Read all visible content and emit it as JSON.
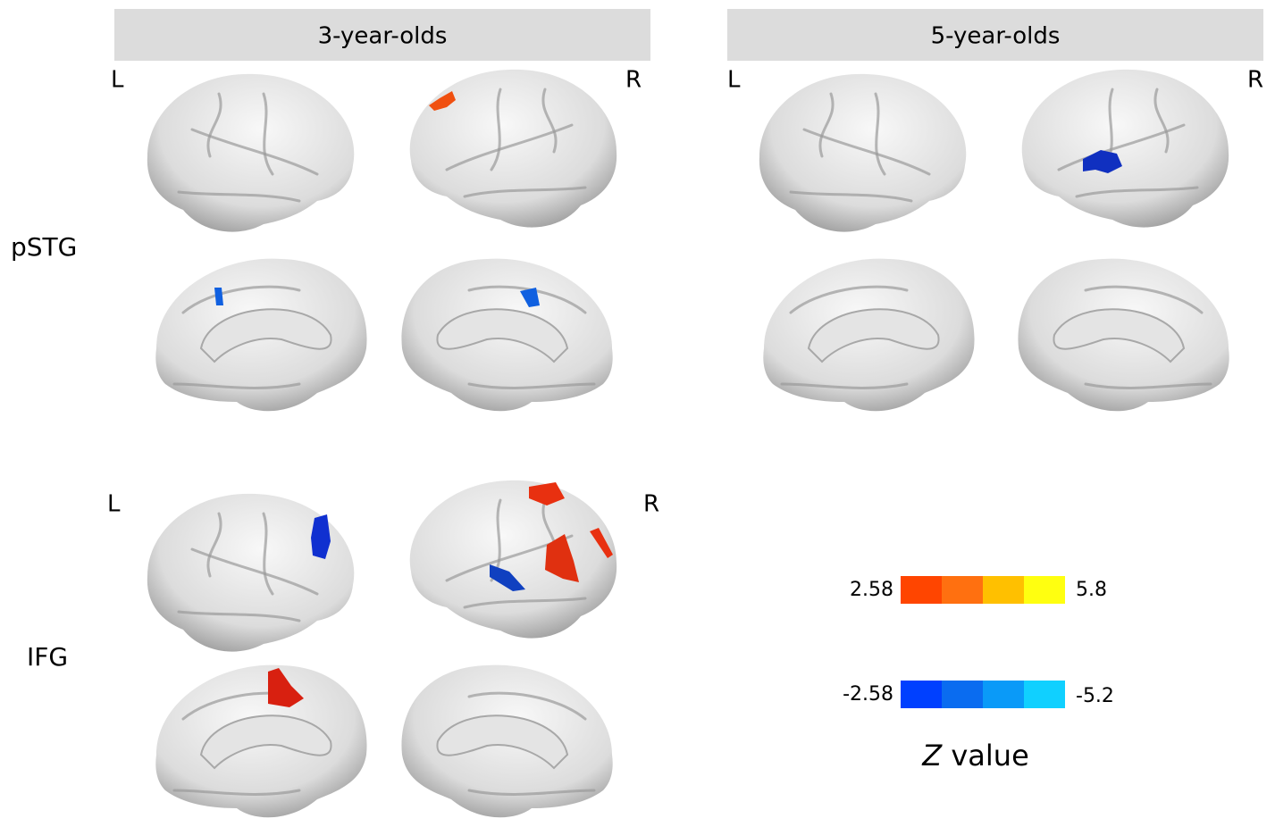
{
  "columns": [
    {
      "title": "3-year-olds",
      "left": "L",
      "right": "R"
    },
    {
      "title": "5-year-olds",
      "left": "L",
      "right": "R"
    }
  ],
  "rows": [
    {
      "label": "pSTG"
    },
    {
      "label": "IFG",
      "left": "L",
      "right": "R"
    }
  ],
  "colorbar": {
    "positive": {
      "min": "2.58",
      "max": "5.8"
    },
    "negative": {
      "min": "-2.58",
      "max": "-5.2"
    },
    "title_italic": "Z",
    "title": "value"
  }
}
